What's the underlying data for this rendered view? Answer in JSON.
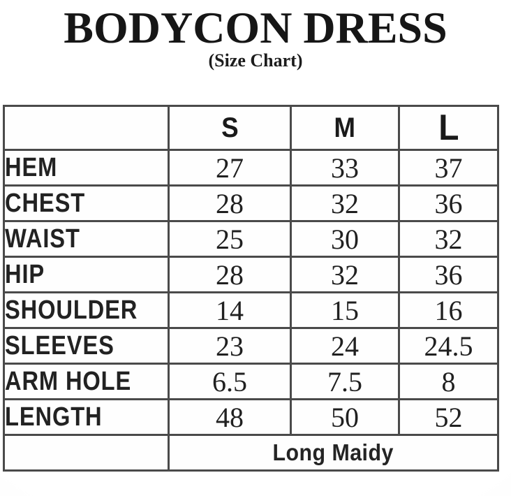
{
  "header": {
    "title": "BODYCON DRESS",
    "subtitle": "(Size Chart)"
  },
  "chart_data": {
    "type": "table",
    "title": "BODYCON DRESS",
    "subtitle": "(Size Chart)",
    "columns": [
      "",
      "S",
      "M",
      "L"
    ],
    "rows": [
      {
        "label": "HEM",
        "values": [
          "27",
          "33",
          "37"
        ]
      },
      {
        "label": "CHEST",
        "values": [
          "28",
          "32",
          "36"
        ]
      },
      {
        "label": "WAIST",
        "values": [
          "25",
          "30",
          "32"
        ]
      },
      {
        "label": "HIP",
        "values": [
          "28",
          "32",
          "36"
        ]
      },
      {
        "label": "SHOULDER",
        "values": [
          "14",
          "15",
          "16"
        ]
      },
      {
        "label": "SLEEVES",
        "values": [
          "23",
          "24",
          "24.5"
        ]
      },
      {
        "label": "ARM HOLE",
        "values": [
          "6.5",
          "7.5",
          "8"
        ]
      },
      {
        "label": "LENGTH",
        "values": [
          "48",
          "50",
          "52"
        ]
      }
    ],
    "footer_note": "Long Maidy",
    "layout": {
      "grid": "on",
      "legend_position": "none",
      "header_row": true,
      "footer_spans_value_columns": true
    }
  },
  "colors": {
    "text": "#1c1c1c",
    "border": "#4a4a4a",
    "background": "#fdfdfd"
  }
}
